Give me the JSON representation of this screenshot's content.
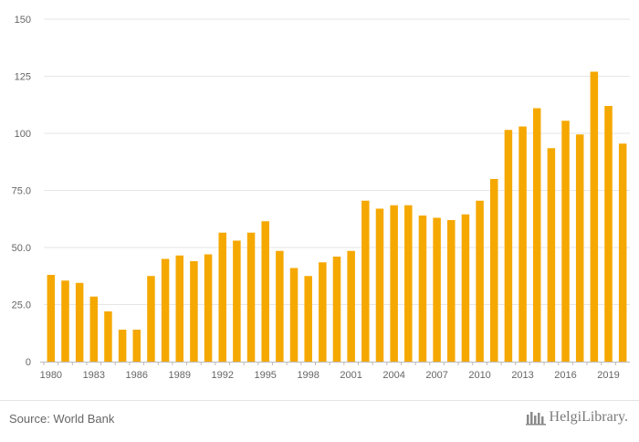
{
  "chart_data": {
    "type": "bar",
    "color": "#f5a800",
    "x_tick_labels": [
      "1980",
      "1983",
      "1986",
      "1989",
      "1992",
      "1995",
      "1998",
      "2001",
      "2004",
      "2007",
      "2010",
      "2013",
      "2016",
      "2019"
    ],
    "y_tick_labels": [
      "0",
      "25.0",
      "50.0",
      "75.0",
      "100",
      "125",
      "150"
    ],
    "ylim": [
      0,
      150
    ],
    "grid": true,
    "categories": [
      1980,
      1981,
      1982,
      1983,
      1984,
      1985,
      1986,
      1987,
      1988,
      1989,
      1990,
      1991,
      1992,
      1993,
      1994,
      1995,
      1996,
      1997,
      1998,
      1999,
      2000,
      2001,
      2002,
      2003,
      2004,
      2005,
      2006,
      2007,
      2008,
      2009,
      2010,
      2011,
      2012,
      2013,
      2014,
      2015,
      2016,
      2017,
      2018,
      2019,
      2020
    ],
    "values": [
      38,
      35.5,
      34.5,
      28.5,
      22,
      14,
      14,
      37.5,
      45,
      46.5,
      44,
      47,
      56.5,
      53,
      56.5,
      61.5,
      48.5,
      41,
      37.5,
      43.5,
      46,
      48.5,
      70.5,
      67,
      68.5,
      68.5,
      64,
      63,
      62,
      64.5,
      70.5,
      80,
      101.5,
      103,
      111,
      93.5,
      105.5,
      99.5,
      127,
      112,
      95.5
    ]
  },
  "footer": {
    "source": "Source: World Bank",
    "brand": "HelgiLibrary."
  }
}
